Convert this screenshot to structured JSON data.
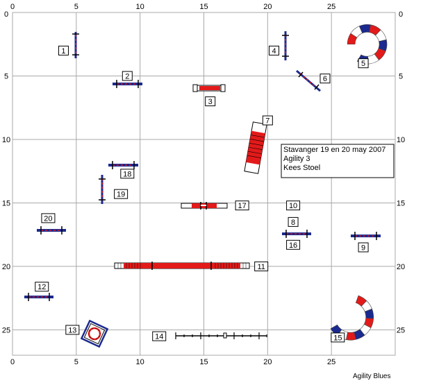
{
  "grid": {
    "x_min": 0,
    "x_max": 30,
    "y_min": 0,
    "y_max": 27,
    "x_ticks": [
      "0",
      "5",
      "10",
      "15",
      "20",
      "25"
    ],
    "y_ticks": [
      "0",
      "5",
      "10",
      "15",
      "20",
      "25"
    ]
  },
  "info": {
    "line1": "Stavanger 19 en 20 may 2007",
    "line2": "Agility 3",
    "line3": "Kees Stoel"
  },
  "credit": "Agility Blues",
  "colors": {
    "blue": "#1b2a8f",
    "red": "#e31a1a",
    "grid": "#a8a8a8"
  },
  "labels": [
    {
      "text": "1",
      "x": 4.0,
      "y": 3.0
    },
    {
      "text": "2",
      "x": 9.0,
      "y": 5.0
    },
    {
      "text": "3",
      "x": 15.5,
      "y": 7.0
    },
    {
      "text": "4",
      "x": 20.5,
      "y": 3.0
    },
    {
      "text": "5",
      "x": 27.5,
      "y": 4.0
    },
    {
      "text": "6",
      "x": 24.5,
      "y": 5.2
    },
    {
      "text": "7",
      "x": 20.0,
      "y": 8.5
    },
    {
      "text": "8",
      "x": 22.0,
      "y": 16.5
    },
    {
      "text": "9",
      "x": 27.5,
      "y": 18.5
    },
    {
      "text": "10",
      "x": 22.0,
      "y": 15.2
    },
    {
      "text": "11",
      "x": 19.5,
      "y": 20.0
    },
    {
      "text": "12",
      "x": 2.3,
      "y": 21.6
    },
    {
      "text": "13",
      "x": 4.7,
      "y": 25.0
    },
    {
      "text": "14",
      "x": 11.5,
      "y": 25.5
    },
    {
      "text": "15",
      "x": 25.5,
      "y": 25.6
    },
    {
      "text": "16",
      "x": 22.0,
      "y": 18.3
    },
    {
      "text": "17",
      "x": 18.0,
      "y": 15.2
    },
    {
      "text": "18",
      "x": 9.0,
      "y": 12.7
    },
    {
      "text": "19",
      "x": 8.5,
      "y": 14.3
    },
    {
      "text": "20",
      "x": 2.8,
      "y": 16.2
    }
  ],
  "tunnel_5": {
    "center_x": 27.8,
    "center_y": 2.5,
    "radius": 1.25,
    "start_angle": 180,
    "end_angle": 480,
    "segments": 9
  },
  "tunnel_15": {
    "center_x": 26.5,
    "center_y": 24.0,
    "radius": 1.5,
    "start_angle": -70,
    "end_angle": 150,
    "segments": 9
  }
}
